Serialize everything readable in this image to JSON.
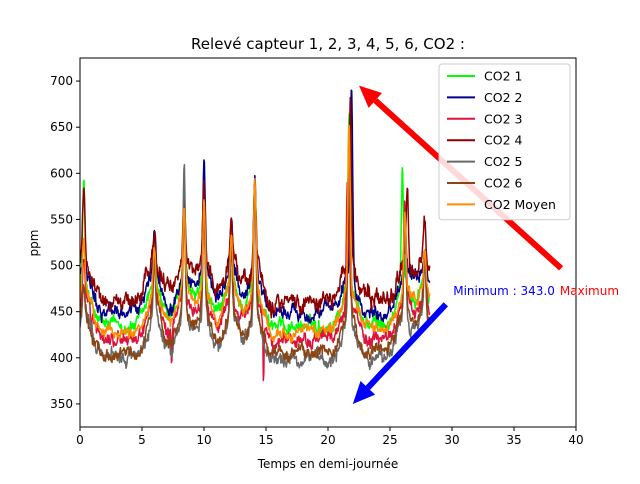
{
  "chart_data": {
    "type": "line",
    "title": "Relevé capteur 1, 2, 3, 4, 5, 6, CO2 :",
    "xlabel": "Temps en demi-journée",
    "ylabel": "ppm",
    "xlim": [
      0,
      40
    ],
    "ylim": [
      325,
      725
    ],
    "xticks": [
      0,
      5,
      10,
      15,
      20,
      25,
      30,
      35,
      40
    ],
    "yticks": [
      350,
      400,
      450,
      500,
      550,
      600,
      650,
      700
    ],
    "legend_position": "top-right",
    "grid": false,
    "data_x_range": [
      0,
      28.2
    ],
    "peak_times": [
      0.3,
      6.0,
      8.4,
      10.0,
      12.2,
      14.1,
      21.7,
      26.2,
      27.8
    ],
    "series": [
      {
        "name": "CO2 1",
        "color": "#00ff00",
        "baseline": 435,
        "noise": 9,
        "anchors": [
          [
            0.3,
            590
          ],
          [
            6.0,
            532
          ],
          [
            8.4,
            565
          ],
          [
            10.0,
            570
          ],
          [
            12.2,
            545
          ],
          [
            14.1,
            592
          ],
          [
            21.7,
            668
          ],
          [
            26.0,
            600
          ],
          [
            27.8,
            520
          ]
        ]
      },
      {
        "name": "CO2 2",
        "color": "#00008b",
        "baseline": 450,
        "noise": 9,
        "anchors": [
          [
            0.3,
            510
          ],
          [
            6.0,
            540
          ],
          [
            8.4,
            565
          ],
          [
            10.0,
            607
          ],
          [
            12.2,
            548
          ],
          [
            14.1,
            600
          ],
          [
            21.9,
            706
          ],
          [
            26.2,
            550
          ],
          [
            27.8,
            520
          ]
        ]
      },
      {
        "name": "CO2 3",
        "color": "#dc143c",
        "baseline": 420,
        "noise": 9,
        "anchors": [
          [
            0.3,
            505
          ],
          [
            6.0,
            520
          ],
          [
            8.4,
            560
          ],
          [
            10.0,
            575
          ],
          [
            12.2,
            535
          ],
          [
            14.1,
            580
          ],
          [
            21.6,
            660
          ],
          [
            26.2,
            560
          ],
          [
            27.8,
            515
          ]
        ],
        "dips": [
          [
            0.9,
            395
          ],
          [
            7.4,
            378
          ],
          [
            14.8,
            350
          ],
          [
            21.6,
            343
          ]
        ]
      },
      {
        "name": "CO2 4",
        "color": "#8b0000",
        "baseline": 462,
        "noise": 11,
        "anchors": [
          [
            0.3,
            585
          ],
          [
            6.0,
            540
          ],
          [
            8.4,
            575
          ],
          [
            10.0,
            595
          ],
          [
            12.2,
            550
          ],
          [
            14.1,
            592
          ],
          [
            21.8,
            690
          ],
          [
            26.4,
            588
          ],
          [
            27.8,
            545
          ]
        ]
      },
      {
        "name": "CO2 5",
        "color": "#696969",
        "baseline": 400,
        "noise": 9,
        "anchors": [
          [
            0.3,
            470
          ],
          [
            6.0,
            500
          ],
          [
            8.4,
            614
          ],
          [
            10.0,
            560
          ],
          [
            12.2,
            520
          ],
          [
            14.1,
            580
          ],
          [
            21.7,
            640
          ],
          [
            26.2,
            550
          ],
          [
            27.8,
            505
          ]
        ]
      },
      {
        "name": "CO2 6",
        "color": "#8b4513",
        "baseline": 405,
        "noise": 8,
        "anchors": [
          [
            0.3,
            480
          ],
          [
            6.0,
            510
          ],
          [
            8.4,
            560
          ],
          [
            10.0,
            560
          ],
          [
            12.2,
            525
          ],
          [
            14.1,
            590
          ],
          [
            21.7,
            650
          ],
          [
            26.2,
            555
          ],
          [
            27.8,
            510
          ]
        ]
      },
      {
        "name": "CO2 Moyen",
        "color": "#ff8c00",
        "baseline": 430,
        "noise": 7,
        "anchors": [
          [
            0.3,
            530
          ],
          [
            6.0,
            520
          ],
          [
            8.4,
            560
          ],
          [
            10.0,
            570
          ],
          [
            12.2,
            535
          ],
          [
            14.1,
            595
          ],
          [
            21.7,
            650
          ],
          [
            26.2,
            560
          ],
          [
            27.8,
            520
          ]
        ]
      }
    ],
    "annotations": [
      {
        "name": "maximum-arrow",
        "color": "#ff0000",
        "from": [
          38.8,
          497
        ],
        "to": [
          22.5,
          695
        ]
      },
      {
        "name": "minimum-arrow",
        "color": "#0000ff",
        "from": [
          29.5,
          458
        ],
        "to": [
          22.0,
          350
        ]
      },
      {
        "name": "minimum-label",
        "text": "Minimum : 343.0",
        "color": "#0000ff",
        "x": 30.1,
        "y": 468
      },
      {
        "name": "maximum-label",
        "text": "Maximum",
        "color": "#ff0000",
        "x": 38.7,
        "y": 468
      }
    ]
  }
}
